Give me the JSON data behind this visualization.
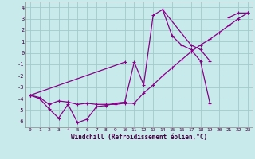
{
  "xlabel": "Windchill (Refroidissement éolien,°C)",
  "bg_color": "#c8eaea",
  "grid_color": "#a0cccc",
  "line_color": "#880088",
  "xlim": [
    -0.5,
    23.5
  ],
  "ylim": [
    -6.5,
    4.5
  ],
  "xticks": [
    0,
    1,
    2,
    3,
    4,
    5,
    6,
    7,
    8,
    9,
    10,
    11,
    12,
    13,
    14,
    15,
    16,
    17,
    18,
    19,
    20,
    21,
    22,
    23
  ],
  "yticks": [
    -6,
    -5,
    -4,
    -3,
    -2,
    -1,
    0,
    1,
    2,
    3,
    4
  ],
  "line1_x": [
    0,
    1,
    2,
    3,
    4,
    5,
    6,
    7,
    8,
    9,
    10,
    11,
    12,
    13,
    14,
    15,
    16,
    17,
    18,
    19
  ],
  "line1_y": [
    -3.7,
    -4.0,
    -4.9,
    -5.7,
    -4.5,
    -6.1,
    -5.8,
    -4.7,
    -4.6,
    -4.4,
    -4.3,
    -0.8,
    -2.8,
    3.3,
    3.8,
    1.5,
    0.7,
    0.3,
    -0.7,
    -4.4
  ],
  "line2_x": [
    0,
    1,
    2,
    3,
    4,
    5,
    6,
    7,
    8,
    9,
    10,
    11,
    12,
    13,
    14,
    15,
    16,
    17,
    18,
    19,
    20,
    21,
    22,
    23
  ],
  "line2_y": [
    -3.7,
    -3.9,
    -4.5,
    -4.2,
    -4.3,
    -4.5,
    -4.4,
    -4.5,
    -4.5,
    -4.5,
    -4.4,
    -4.4,
    -3.5,
    -2.8,
    -2.0,
    -1.3,
    -0.6,
    0.1,
    0.7,
    1.2,
    1.8,
    2.4,
    3.0,
    3.5
  ],
  "line3_segs": [
    {
      "x": [
        0,
        10
      ],
      "y": [
        -3.7,
        -0.8
      ]
    },
    {
      "x": [
        14,
        17,
        18,
        19
      ],
      "y": [
        3.8,
        0.7,
        0.3,
        -0.7
      ]
    },
    {
      "x": [
        21,
        22,
        23
      ],
      "y": [
        3.1,
        3.5,
        3.5
      ]
    }
  ]
}
